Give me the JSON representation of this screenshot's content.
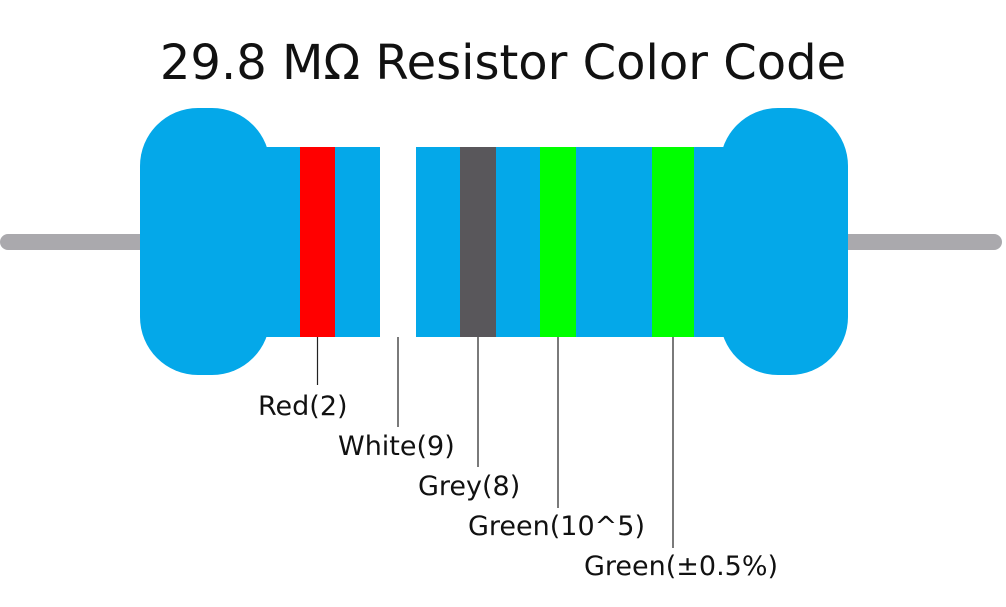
{
  "title": "29.8 MΩ Resistor Color Code",
  "bands": [
    {
      "label": "Red(2)",
      "color": "#ff0000"
    },
    {
      "label": "White(9)",
      "color": "#ffffff"
    },
    {
      "label": "Grey(8)",
      "color": "#59575b"
    },
    {
      "label": "Green(10^5)",
      "color": "#00ff00"
    },
    {
      "label": "Green(±0.5%)",
      "color": "#00ff00"
    }
  ]
}
